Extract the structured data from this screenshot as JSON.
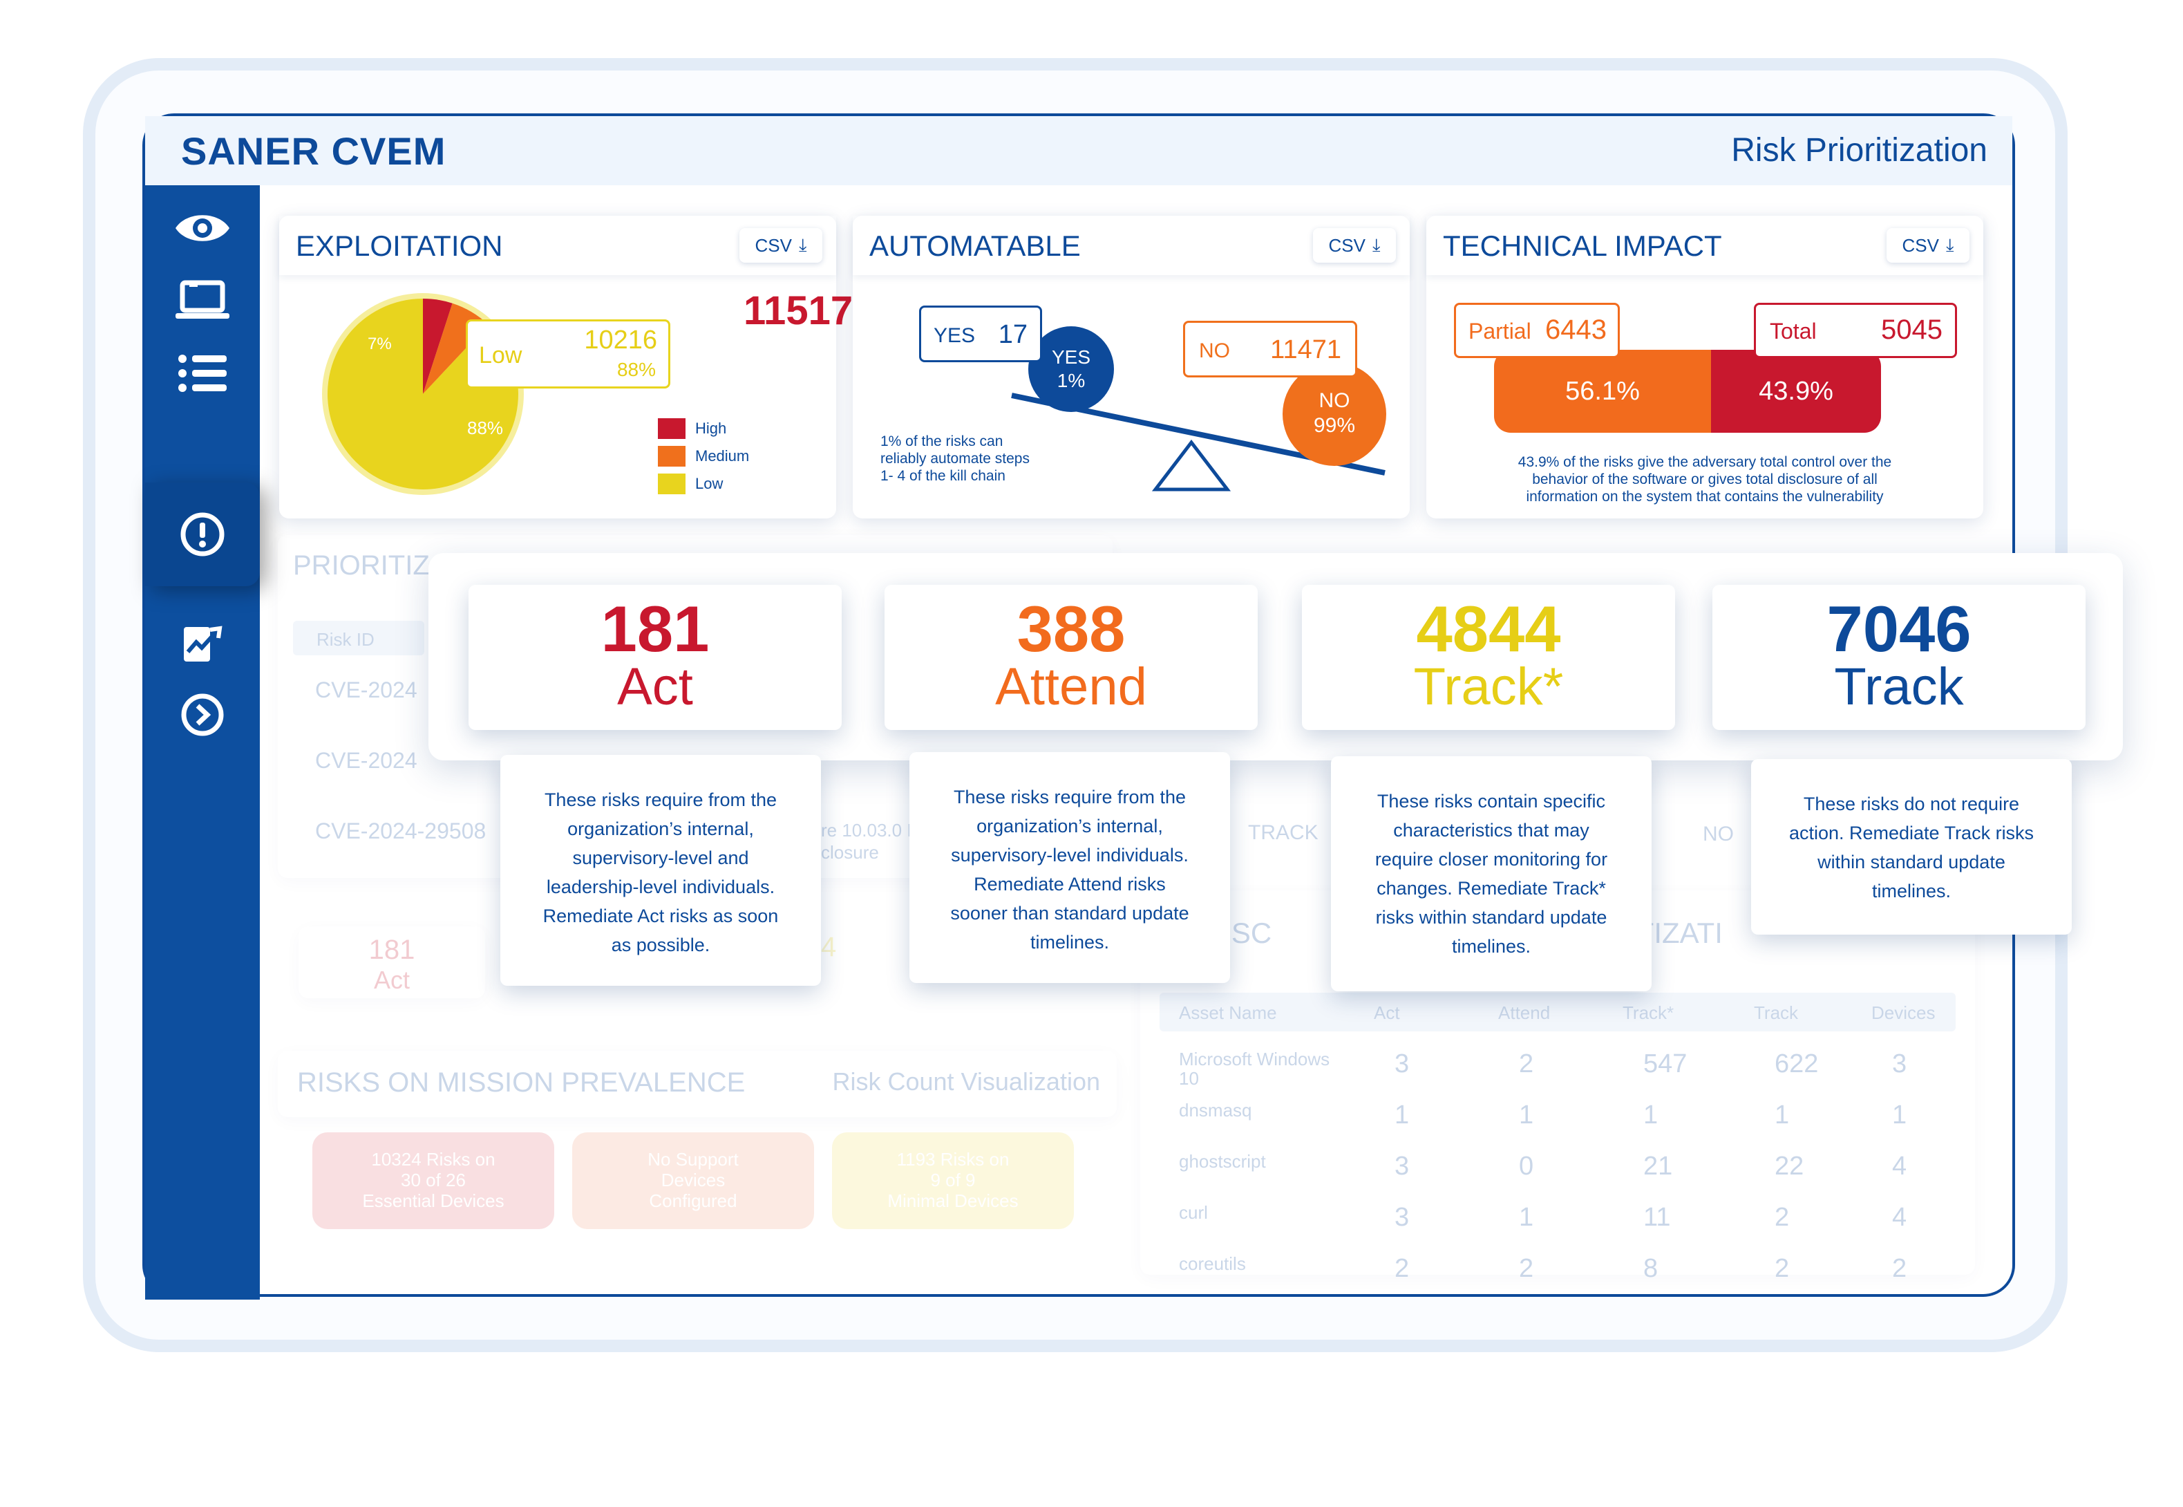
{
  "app": {
    "title": "SANER CVEM",
    "page": "Risk Prioritization"
  },
  "sidebar": {
    "items": [
      {
        "name": "eye-icon"
      },
      {
        "name": "laptop-icon"
      },
      {
        "name": "list-icon"
      },
      {
        "name": "alert-circle-icon",
        "active": true
      },
      {
        "name": "report-icon"
      },
      {
        "name": "chevron-right-circle-icon"
      }
    ]
  },
  "panels": {
    "exploitation": {
      "title": "EXPLOITATION",
      "csv": "CSV",
      "total": "11517",
      "callout": {
        "label": "Low",
        "value": "10216",
        "pct": "88%"
      },
      "slice_labels": {
        "medium": "7%",
        "low": "88%"
      },
      "legend": [
        "High",
        "Medium",
        "Low"
      ]
    },
    "automatable": {
      "title": "AUTOMATABLE",
      "csv": "CSV",
      "yes_box": {
        "label": "YES",
        "value": "17"
      },
      "no_box": {
        "label": "NO",
        "value": "11471"
      },
      "yes_bubble": {
        "label": "YES",
        "pct": "1%"
      },
      "no_bubble": {
        "label": "NO",
        "pct": "99%"
      },
      "note_lines": [
        "1% of the risks can",
        "reliably automate steps",
        "1- 4 of the kill chain"
      ]
    },
    "technical_impact": {
      "title": "TECHNICAL IMPACT",
      "csv": "CSV",
      "partial": {
        "label": "Partial",
        "value": "6443",
        "pct": "56.1%"
      },
      "total": {
        "label": "Total",
        "value": "5045",
        "pct": "43.9%"
      },
      "note_lines": [
        "43.9% of the risks give the adversary total control over the",
        "behavior of the software or gives total disclosure of all",
        "information on the system that contains the vulnerability"
      ]
    }
  },
  "chart_data": [
    {
      "type": "pie",
      "title": "EXPLOITATION",
      "categories": [
        "High",
        "Medium",
        "Low"
      ],
      "values": [
        5,
        7,
        88
      ],
      "colors": [
        "#c8182e",
        "#f0701c",
        "#e8d41e"
      ]
    },
    {
      "type": "bar",
      "title": "TECHNICAL IMPACT",
      "categories": [
        "Partial",
        "Total"
      ],
      "values": [
        56.1,
        43.9
      ],
      "colors": [
        "#f26b1d",
        "#c8182e"
      ]
    }
  ],
  "background": {
    "prioritization_title": "PRIORITIZ",
    "risk_id_header": "Risk ID",
    "rows": [
      "CVE-2024",
      "CVE-2024",
      "CVE-2024-29508"
    ],
    "fragment_1": "re 10.03.0 I",
    "fragment_2": "closure",
    "track_cell": "TRACK",
    "no_cell": "NO",
    "mini_count": "181",
    "mini_label": "Act",
    "mini_count_2": "4",
    "mission_title": "RISKS ON MISSION PREVALENCE",
    "mission_link": "Risk Count Visualization",
    "mission_cards": [
      {
        "lines": [
          "10324 Risks on",
          "30 of 26",
          "Essential Devices"
        ],
        "color": "#e5707a"
      },
      {
        "lines": [
          "No Support",
          "Devices",
          "Configured"
        ],
        "color": "#f5a583"
      },
      {
        "lines": [
          "1193 Risks on",
          "9 of 9",
          "Minimal Devices"
        ],
        "color": "#f4e36a"
      }
    ],
    "critical_title_a": "CAL SC",
    "critical_title_b": "ITIZATI",
    "table_headers": [
      "Asset Name",
      "Act",
      "Attend",
      "Track*",
      "Track",
      "Devices"
    ],
    "table_rows": [
      [
        "Microsoft Windows 10",
        "3",
        "2",
        "547",
        "622",
        "3"
      ],
      [
        "dnsmasq",
        "1",
        "1",
        "1",
        "1",
        "1"
      ],
      [
        "ghostscript",
        "3",
        "0",
        "21",
        "22",
        "4"
      ],
      [
        "curl",
        "3",
        "1",
        "11",
        "2",
        "4"
      ],
      [
        "coreutils",
        "2",
        "2",
        "8",
        "2",
        "2"
      ]
    ]
  },
  "categories": [
    {
      "count": "181",
      "label": "Act",
      "color": "#c8182e",
      "desc": [
        "These risks require from the",
        "organization’s internal,",
        "supervisory-level and",
        "leadership-level individuals.",
        "Remediate Act risks as soon",
        "as possible."
      ]
    },
    {
      "count": "388",
      "label": "Attend",
      "color": "#f26b1d",
      "desc": [
        "These risks require from the",
        "organization’s internal,",
        "supervisory-level individuals.",
        "Remediate Attend risks",
        "sooner than standard update",
        "timelines."
      ]
    },
    {
      "count": "4844",
      "label": "Track*",
      "color": "#e6ce16",
      "desc": [
        "These risks contain specific",
        "characteristics that may",
        "require closer monitoring for",
        "changes. Remediate Track*",
        "risks within standard update",
        "timelines."
      ]
    },
    {
      "count": "7046",
      "label": "Track",
      "color": "#0d4a9a",
      "desc": [
        "These risks do not require",
        "action. Remediate Track risks",
        "within standard update",
        "timelines."
      ]
    }
  ]
}
